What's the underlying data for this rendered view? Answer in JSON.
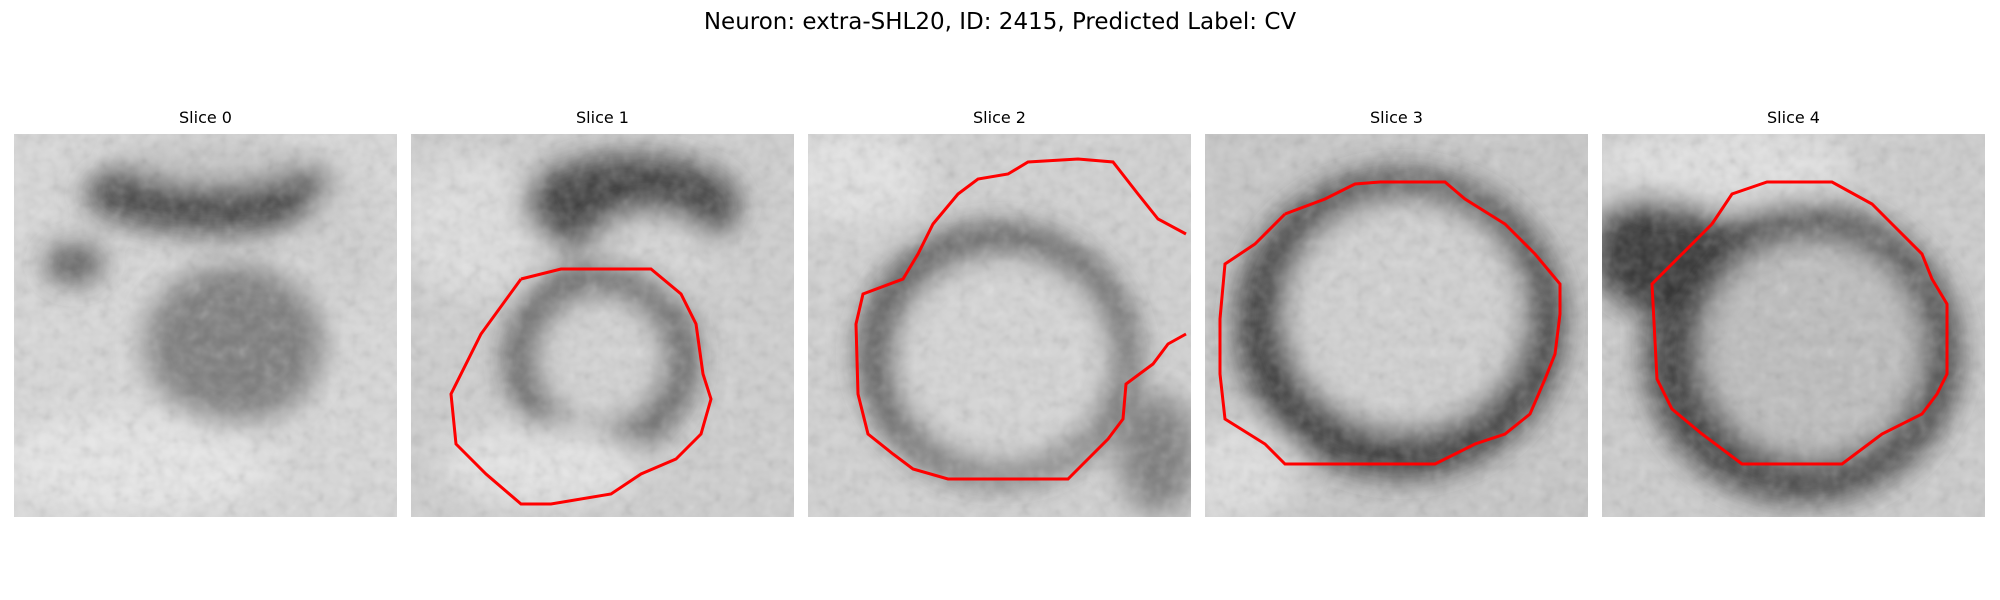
{
  "figure": {
    "title": "Neuron: extra-SHL20, ID: 2415, Predicted Label: CV"
  },
  "panels": [
    {
      "title": "Slice 0",
      "has_contour": false
    },
    {
      "title": "Slice 1",
      "has_contour": true
    },
    {
      "title": "Slice 2",
      "has_contour": true
    },
    {
      "title": "Slice 3",
      "has_contour": true
    },
    {
      "title": "Slice 4",
      "has_contour": true
    }
  ],
  "colors": {
    "contour": "#ff0000",
    "background": "#ffffff",
    "image_colormap": "gray"
  }
}
